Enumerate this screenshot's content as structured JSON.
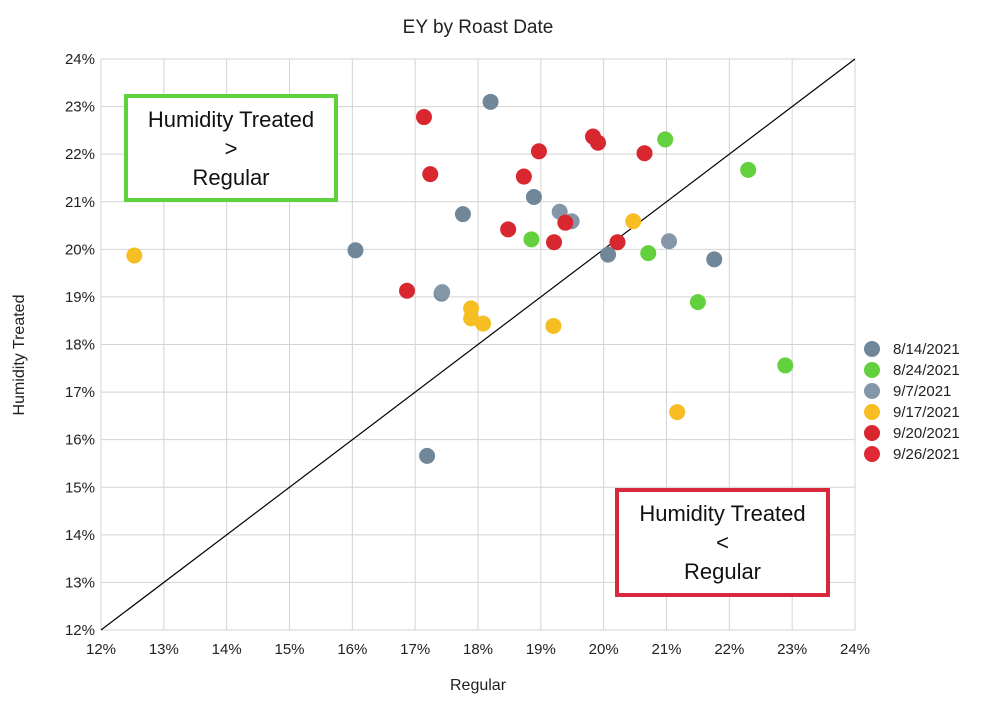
{
  "chart_data": {
    "type": "scatter",
    "title": "EY by Roast Date",
    "xlabel": "Regular",
    "ylabel": "Humidity Treated",
    "xlim": [
      12,
      24
    ],
    "ylim": [
      12,
      24
    ],
    "tick_step": 1,
    "tick_suffix": "%",
    "grid": true,
    "legend_position": "right",
    "reference_line": {
      "from": [
        12,
        12
      ],
      "to": [
        24,
        24
      ],
      "color": "#000000"
    },
    "annotations": [
      {
        "position": "top-left",
        "lines": [
          "Humidity Treated",
          ">",
          "Regular"
        ],
        "border_color": "#5fd13a"
      },
      {
        "position": "bottom-right",
        "lines": [
          "Humidity Treated",
          "<",
          "Regular"
        ],
        "border_color": "#d8283d"
      }
    ],
    "series": [
      {
        "name": "8/14/2021",
        "color": "#6f8799",
        "points": [
          [
            16.05,
            19.98
          ],
          [
            17.42,
            19.07
          ],
          [
            17.76,
            20.74
          ],
          [
            18.2,
            23.1
          ],
          [
            18.89,
            21.1
          ],
          [
            17.19,
            15.66
          ],
          [
            20.07,
            19.89
          ],
          [
            21.76,
            19.79
          ]
        ]
      },
      {
        "name": "8/24/2021",
        "color": "#63d13e",
        "points": [
          [
            18.85,
            20.21
          ],
          [
            20.98,
            22.31
          ],
          [
            22.3,
            21.67
          ],
          [
            20.71,
            19.92
          ],
          [
            21.5,
            18.89
          ],
          [
            22.89,
            17.56
          ]
        ]
      },
      {
        "name": "9/7/2021",
        "color": "#8496a8",
        "points": [
          [
            17.43,
            19.1
          ],
          [
            19.3,
            20.79
          ],
          [
            19.49,
            20.59
          ],
          [
            21.04,
            20.17
          ]
        ]
      },
      {
        "name": "9/17/2021",
        "color": "#f6be22",
        "points": [
          [
            12.53,
            19.87
          ],
          [
            17.89,
            18.76
          ],
          [
            17.89,
            18.55
          ],
          [
            18.08,
            18.44
          ],
          [
            19.2,
            18.39
          ],
          [
            20.47,
            20.59
          ],
          [
            21.17,
            16.58
          ]
        ]
      },
      {
        "name": "9/20/2021",
        "color": "#d9272f",
        "points": [
          [
            17.14,
            22.78
          ],
          [
            17.24,
            21.58
          ],
          [
            16.87,
            19.13
          ],
          [
            18.48,
            20.42
          ],
          [
            18.73,
            21.53
          ],
          [
            18.97,
            22.06
          ],
          [
            19.21,
            20.15
          ],
          [
            19.39,
            20.56
          ],
          [
            19.83,
            22.37
          ],
          [
            19.91,
            22.24
          ],
          [
            20.22,
            20.15
          ],
          [
            20.65,
            22.02
          ]
        ]
      },
      {
        "name": "9/26/2021",
        "color": "#e02936",
        "points": []
      }
    ]
  }
}
